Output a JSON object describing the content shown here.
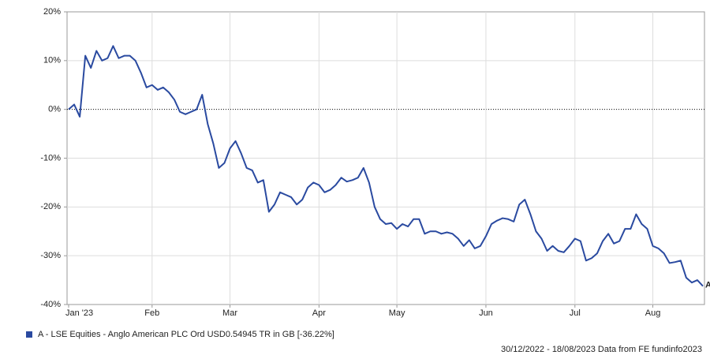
{
  "chart_data": {
    "type": "line",
    "categories": [
      "Jan '23",
      null,
      null,
      null,
      null,
      null,
      null,
      null,
      null,
      null,
      null,
      null,
      null,
      null,
      null,
      "Feb",
      null,
      null,
      null,
      null,
      null,
      null,
      null,
      null,
      null,
      null,
      null,
      null,
      null,
      "Mar",
      null,
      null,
      null,
      null,
      null,
      null,
      null,
      null,
      null,
      null,
      null,
      null,
      null,
      null,
      null,
      "Apr",
      null,
      null,
      null,
      null,
      null,
      null,
      null,
      null,
      null,
      null,
      null,
      null,
      null,
      "May",
      null,
      null,
      null,
      null,
      null,
      null,
      null,
      null,
      null,
      null,
      null,
      null,
      null,
      null,
      null,
      "Jun",
      null,
      null,
      null,
      null,
      null,
      null,
      null,
      null,
      null,
      null,
      null,
      null,
      null,
      null,
      null,
      "Jul",
      null,
      null,
      null,
      null,
      null,
      null,
      null,
      null,
      null,
      null,
      null,
      null,
      null,
      "Aug",
      null,
      null,
      null,
      null,
      null,
      null,
      null,
      null,
      null
    ],
    "series": [
      {
        "name": "A - LSE Equities - Anglo American PLC Ord USD0.54945 TR in GB [-36.22%]",
        "color": "#2a4aa0",
        "end_label": "A",
        "values": [
          0,
          1,
          -1.5,
          11,
          8.5,
          12,
          10,
          10.5,
          13,
          10.5,
          11,
          11,
          10,
          7.5,
          4.5,
          5,
          4,
          4.5,
          3.5,
          2,
          -0.5,
          -1,
          -0.5,
          0,
          3,
          -3,
          -7,
          -12,
          -11,
          -8,
          -6.5,
          -9,
          -12,
          -12.5,
          -15,
          -14.5,
          -21,
          -19.5,
          -17,
          -17.5,
          -18,
          -19.5,
          -18.5,
          -16,
          -15,
          -15.5,
          -17,
          -16.5,
          -15.5,
          -14,
          -14.8,
          -14.5,
          -14,
          -12,
          -15,
          -20,
          -22.5,
          -23.5,
          -23.3,
          -24.5,
          -23.5,
          -24,
          -22.5,
          -22.5,
          -25.5,
          -25,
          -25,
          -25.5,
          -25.2,
          -25.5,
          -26.5,
          -28,
          -26.8,
          -28.5,
          -28,
          -26,
          -23.5,
          -22.8,
          -22.3,
          -22.5,
          -23,
          -19.5,
          -18.5,
          -21.5,
          -25,
          -26.5,
          -29,
          -28,
          -29,
          -29.3,
          -28,
          -26.5,
          -27,
          -31,
          -30.5,
          -29.5,
          -27,
          -25.5,
          -27.5,
          -27,
          -24.5,
          -24.5,
          -21.5,
          -23.5,
          -24.5,
          -28,
          -28.5,
          -29.5,
          -31.5,
          -31.3,
          -31,
          -34.5,
          -35.5,
          -35,
          -36.22
        ]
      }
    ],
    "ylim": [
      -40,
      20
    ],
    "yticks": [
      {
        "value": -40,
        "label": "-40%"
      },
      {
        "value": -30,
        "label": "-30%"
      },
      {
        "value": -20,
        "label": "-20%"
      },
      {
        "value": -10,
        "label": "-10%"
      },
      {
        "value": 0,
        "label": "0%"
      },
      {
        "value": 10,
        "label": "10%"
      },
      {
        "value": 20,
        "label": "20%"
      }
    ],
    "grid": true,
    "zero_line": true,
    "footer": "30/12/2022 - 18/08/2023 Data from FE fundinfo2023"
  }
}
